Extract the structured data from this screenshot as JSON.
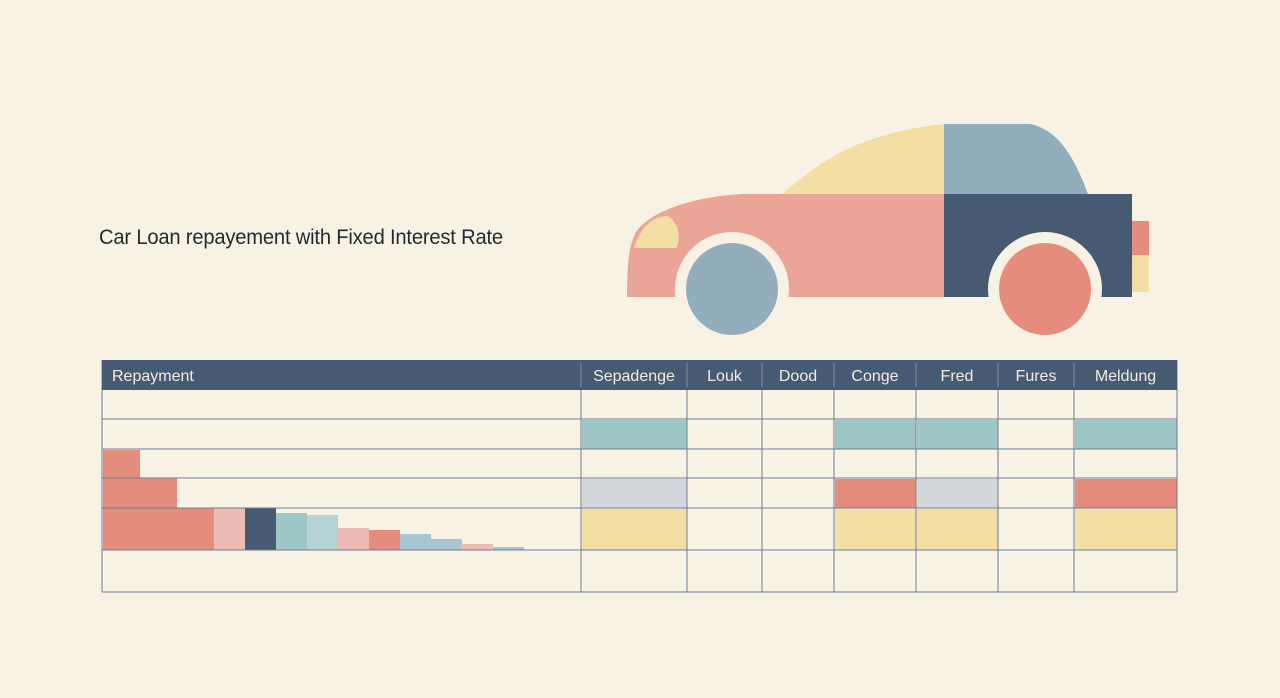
{
  "title": "Car Loan repayement with Fixed Interest Rate",
  "colors": {
    "background": "#f8f2e4",
    "navy": "#475a74",
    "coral": "#e58d7c",
    "salmon": "#eaa597",
    "pink": "#ecbcb4",
    "teal": "#9ec6c6",
    "pale_teal": "#b5d3d4",
    "steel_blue": "#92adbb",
    "light_steel": "#a9c5d2",
    "gray": "#d3d7dc",
    "yellow": "#f3dea3",
    "grid_line": "#6b7d92"
  },
  "chart_data": {
    "type": "table",
    "columns": [
      "Repayment",
      "Sepadenge",
      "Louk",
      "Dood",
      "Conge",
      "Fred",
      "Fures",
      "Meldung"
    ],
    "row_count": 6,
    "cell_fills": [
      [
        "",
        "",
        "",
        "",
        "",
        "",
        ""
      ],
      [
        "teal",
        "",
        "",
        "teal",
        "teal",
        "",
        "teal"
      ],
      [
        "",
        "",
        "",
        "",
        "",
        "",
        ""
      ],
      [
        "gray",
        "",
        "",
        "coral",
        "gray",
        "",
        "coral"
      ],
      [
        "yellow",
        "",
        "",
        "yellow",
        "yellow",
        "",
        "yellow"
      ],
      [
        "",
        "",
        "",
        "",
        "",
        "",
        ""
      ]
    ],
    "repayment_bars": {
      "type": "bar",
      "values": [
        100,
        72,
        42,
        42,
        42,
        37,
        35,
        22,
        20,
        16,
        11,
        6,
        3
      ],
      "colors": [
        "coral",
        "coral",
        "coral",
        "pink",
        "navy",
        "teal",
        "pale_teal",
        "pink",
        "coral",
        "light_steel",
        "light_steel",
        "pink",
        "light_steel"
      ]
    }
  }
}
